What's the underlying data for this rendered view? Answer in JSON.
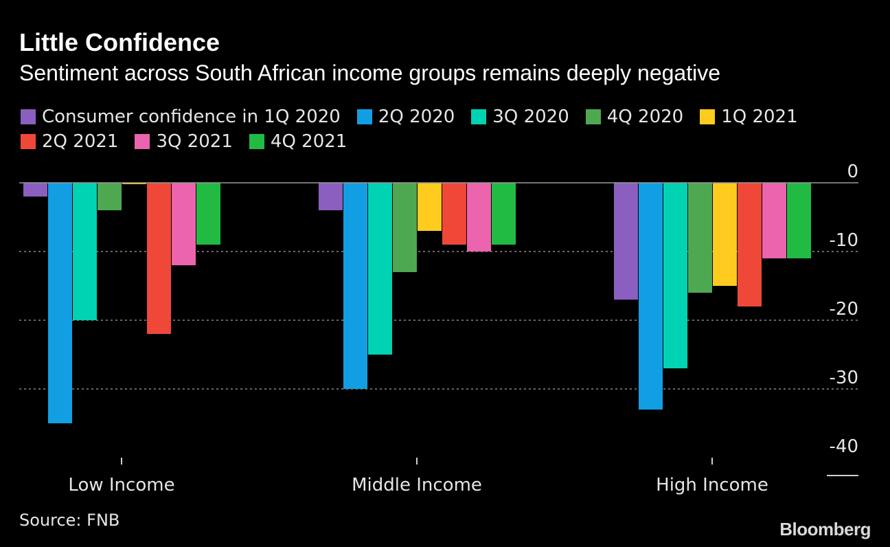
{
  "header": {
    "title": "Little Confidence",
    "subtitle": "Sentiment across South African income groups remains deeply negative"
  },
  "footer": {
    "source": "Source: FNB",
    "brand": "Bloomberg"
  },
  "colors": {
    "background": "#000000",
    "gridline": "#8a8a8a",
    "text": "#e6e6e6"
  },
  "chart_data": {
    "type": "bar",
    "categories": [
      "Low Income",
      "Middle Income",
      "High Income"
    ],
    "series": [
      {
        "name": "Consumer confidence in 1Q 2020",
        "color": "#8b5fbf",
        "values": [
          -2,
          -4,
          -17
        ]
      },
      {
        "name": "2Q 2020",
        "color": "#129ee3",
        "values": [
          -35,
          -30,
          -33
        ]
      },
      {
        "name": "3Q 2020",
        "color": "#00d2b4",
        "values": [
          -20,
          -25,
          -27
        ]
      },
      {
        "name": "4Q 2020",
        "color": "#4ea852",
        "values": [
          -4,
          -13,
          -16
        ]
      },
      {
        "name": "1Q 2021",
        "color": "#ffcb1f",
        "values": [
          -0.2,
          -7,
          -15
        ]
      },
      {
        "name": "2Q 2021",
        "color": "#ef4839",
        "values": [
          -22,
          -9,
          -18
        ]
      },
      {
        "name": "3Q 2021",
        "color": "#ec64ad",
        "values": [
          -12,
          -10,
          -11
        ]
      },
      {
        "name": "4Q 2021",
        "color": "#21bb43",
        "values": [
          -9,
          -9,
          -11
        ]
      }
    ],
    "yticks": [
      0,
      -10,
      -20,
      -30,
      -40
    ],
    "ytick_labels": [
      "0",
      "-10",
      "-20",
      "-30",
      "-40"
    ],
    "ylim": [
      -40,
      0
    ],
    "grid": true,
    "legend_position": "top-left",
    "xlabel": "",
    "ylabel": ""
  }
}
